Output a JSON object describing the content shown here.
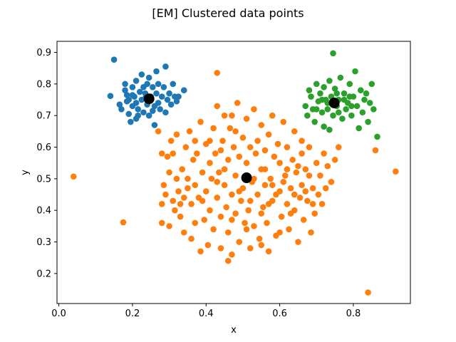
{
  "chart_data": {
    "type": "scatter",
    "title": "[EM] Clustered data points",
    "xlabel": "x",
    "ylabel": "y",
    "xlim": [
      -0.005,
      0.955
    ],
    "ylim": [
      0.105,
      0.935
    ],
    "xticks": [
      0.0,
      0.2,
      0.4,
      0.6,
      0.8
    ],
    "xtick_labels": [
      "0.0",
      "0.2",
      "0.4",
      "0.6",
      "0.8"
    ],
    "yticks": [
      0.2,
      0.3,
      0.4,
      0.5,
      0.6,
      0.7,
      0.8,
      0.9
    ],
    "ytick_labels": [
      "0.2",
      "0.3",
      "0.4",
      "0.5",
      "0.6",
      "0.7",
      "0.8",
      "0.9"
    ],
    "grid": false,
    "series": [
      {
        "color": "#1f77b4",
        "points": [
          [
            0.15,
            0.877
          ],
          [
            0.14,
            0.762
          ],
          [
            0.165,
            0.735
          ],
          [
            0.17,
            0.72
          ],
          [
            0.18,
            0.8
          ],
          [
            0.18,
            0.78
          ],
          [
            0.185,
            0.765
          ],
          [
            0.19,
            0.75
          ],
          [
            0.19,
            0.705
          ],
          [
            0.195,
            0.68
          ],
          [
            0.2,
            0.79
          ],
          [
            0.2,
            0.73
          ],
          [
            0.205,
            0.76
          ],
          [
            0.21,
            0.81
          ],
          [
            0.21,
            0.74
          ],
          [
            0.215,
            0.72
          ],
          [
            0.215,
            0.7
          ],
          [
            0.22,
            0.775
          ],
          [
            0.225,
            0.83
          ],
          [
            0.225,
            0.75
          ],
          [
            0.23,
            0.79
          ],
          [
            0.23,
            0.71
          ],
          [
            0.235,
            0.77
          ],
          [
            0.24,
            0.8
          ],
          [
            0.24,
            0.735
          ],
          [
            0.245,
            0.82
          ],
          [
            0.245,
            0.7
          ],
          [
            0.25,
            0.76
          ],
          [
            0.255,
            0.79
          ],
          [
            0.26,
            0.73
          ],
          [
            0.26,
            0.67
          ],
          [
            0.265,
            0.77
          ],
          [
            0.27,
            0.74
          ],
          [
            0.27,
            0.8
          ],
          [
            0.275,
            0.72
          ],
          [
            0.28,
            0.76
          ],
          [
            0.285,
            0.79
          ],
          [
            0.29,
            0.855
          ],
          [
            0.29,
            0.71
          ],
          [
            0.295,
            0.75
          ],
          [
            0.3,
            0.77
          ],
          [
            0.305,
            0.735
          ],
          [
            0.31,
            0.8
          ],
          [
            0.315,
            0.76
          ],
          [
            0.32,
            0.745
          ],
          [
            0.325,
            0.76
          ],
          [
            0.34,
            0.78
          ],
          [
            0.265,
            0.84
          ],
          [
            0.185,
            0.745
          ],
          [
            0.2,
            0.765
          ],
          [
            0.21,
            0.69
          ],
          [
            0.235,
            0.755
          ],
          [
            0.255,
            0.715
          ]
        ]
      },
      {
        "color": "#ff7f0e",
        "points": [
          [
            0.04,
            0.507
          ],
          [
            0.175,
            0.362
          ],
          [
            0.43,
            0.835
          ],
          [
            0.84,
            0.14
          ],
          [
            0.915,
            0.523
          ],
          [
            0.86,
            0.59
          ],
          [
            0.27,
            0.65
          ],
          [
            0.28,
            0.58
          ],
          [
            0.28,
            0.42
          ],
          [
            0.28,
            0.36
          ],
          [
            0.285,
            0.48
          ],
          [
            0.29,
            0.45
          ],
          [
            0.295,
            0.57
          ],
          [
            0.3,
            0.52
          ],
          [
            0.3,
            0.35
          ],
          [
            0.305,
            0.62
          ],
          [
            0.31,
            0.43
          ],
          [
            0.315,
            0.4
          ],
          [
            0.32,
            0.5
          ],
          [
            0.32,
            0.64
          ],
          [
            0.325,
            0.46
          ],
          [
            0.33,
            0.38
          ],
          [
            0.335,
            0.53
          ],
          [
            0.34,
            0.33
          ],
          [
            0.345,
            0.6
          ],
          [
            0.35,
            0.47
          ],
          [
            0.355,
            0.65
          ],
          [
            0.36,
            0.42
          ],
          [
            0.36,
            0.31
          ],
          [
            0.365,
            0.56
          ],
          [
            0.37,
            0.48
          ],
          [
            0.37,
            0.36
          ],
          [
            0.375,
            0.58
          ],
          [
            0.38,
            0.44
          ],
          [
            0.385,
            0.68
          ],
          [
            0.385,
            0.27
          ],
          [
            0.39,
            0.52
          ],
          [
            0.395,
            0.37
          ],
          [
            0.4,
            0.61
          ],
          [
            0.4,
            0.46
          ],
          [
            0.405,
            0.29
          ],
          [
            0.41,
            0.55
          ],
          [
            0.41,
            0.4
          ],
          [
            0.415,
            0.5
          ],
          [
            0.42,
            0.66
          ],
          [
            0.42,
            0.34
          ],
          [
            0.425,
            0.58
          ],
          [
            0.43,
            0.44
          ],
          [
            0.43,
            0.73
          ],
          [
            0.435,
            0.52
          ],
          [
            0.44,
            0.38
          ],
          [
            0.44,
            0.28
          ],
          [
            0.445,
            0.62
          ],
          [
            0.45,
            0.48
          ],
          [
            0.45,
            0.7
          ],
          [
            0.455,
            0.41
          ],
          [
            0.46,
            0.56
          ],
          [
            0.46,
            0.33
          ],
          [
            0.465,
            0.66
          ],
          [
            0.47,
            0.45
          ],
          [
            0.47,
            0.26
          ],
          [
            0.475,
            0.6
          ],
          [
            0.48,
            0.51
          ],
          [
            0.48,
            0.39
          ],
          [
            0.485,
            0.74
          ],
          [
            0.49,
            0.57
          ],
          [
            0.49,
            0.3
          ],
          [
            0.495,
            0.43
          ],
          [
            0.5,
            0.63
          ],
          [
            0.5,
            0.47
          ],
          [
            0.505,
            0.36
          ],
          [
            0.51,
            0.69
          ],
          [
            0.51,
            0.55
          ],
          [
            0.515,
            0.4
          ],
          [
            0.52,
            0.6
          ],
          [
            0.52,
            0.28
          ],
          [
            0.525,
            0.49
          ],
          [
            0.53,
            0.72
          ],
          [
            0.53,
            0.35
          ],
          [
            0.535,
            0.58
          ],
          [
            0.54,
            0.45
          ],
          [
            0.54,
            0.62
          ],
          [
            0.545,
            0.31
          ],
          [
            0.55,
            0.53
          ],
          [
            0.55,
            0.67
          ],
          [
            0.555,
            0.41
          ],
          [
            0.56,
            0.59
          ],
          [
            0.56,
            0.48
          ],
          [
            0.565,
            0.36
          ],
          [
            0.57,
            0.64
          ],
          [
            0.57,
            0.27
          ],
          [
            0.575,
            0.5
          ],
          [
            0.58,
            0.7
          ],
          [
            0.58,
            0.43
          ],
          [
            0.585,
            0.57
          ],
          [
            0.59,
            0.32
          ],
          [
            0.595,
            0.61
          ],
          [
            0.6,
            0.46
          ],
          [
            0.6,
            0.55
          ],
          [
            0.605,
            0.38
          ],
          [
            0.61,
            0.68
          ],
          [
            0.615,
            0.51
          ],
          [
            0.62,
            0.42
          ],
          [
            0.62,
            0.6
          ],
          [
            0.625,
            0.34
          ],
          [
            0.63,
            0.47
          ],
          [
            0.635,
            0.56
          ],
          [
            0.64,
            0.65
          ],
          [
            0.64,
            0.4
          ],
          [
            0.645,
            0.52
          ],
          [
            0.65,
            0.3
          ],
          [
            0.655,
            0.44
          ],
          [
            0.66,
            0.58
          ],
          [
            0.66,
            0.48
          ],
          [
            0.665,
            0.37
          ],
          [
            0.67,
            0.53
          ],
          [
            0.675,
            0.43
          ],
          [
            0.68,
            0.6
          ],
          [
            0.685,
            0.33
          ],
          [
            0.69,
            0.47
          ],
          [
            0.695,
            0.39
          ],
          [
            0.7,
            0.55
          ],
          [
            0.705,
            0.45
          ],
          [
            0.71,
            0.51
          ],
          [
            0.715,
            0.42
          ],
          [
            0.72,
            0.58
          ],
          [
            0.725,
            0.47
          ],
          [
            0.73,
            0.54
          ],
          [
            0.74,
            0.49
          ],
          [
            0.75,
            0.56
          ],
          [
            0.76,
            0.6
          ],
          [
            0.46,
            0.24
          ],
          [
            0.34,
            0.44
          ],
          [
            0.37,
            0.62
          ],
          [
            0.43,
            0.49
          ],
          [
            0.47,
            0.37
          ],
          [
            0.52,
            0.43
          ],
          [
            0.56,
            0.53
          ],
          [
            0.59,
            0.45
          ],
          [
            0.63,
            0.39
          ],
          [
            0.67,
            0.46
          ],
          [
            0.44,
            0.59
          ],
          [
            0.48,
            0.65
          ],
          [
            0.53,
            0.5
          ],
          [
            0.57,
            0.42
          ],
          [
            0.61,
            0.49
          ],
          [
            0.65,
            0.54
          ],
          [
            0.69,
            0.42
          ],
          [
            0.39,
            0.43
          ],
          [
            0.41,
            0.62
          ],
          [
            0.45,
            0.53
          ],
          [
            0.49,
            0.46
          ],
          [
            0.51,
            0.34
          ],
          [
            0.55,
            0.39
          ],
          [
            0.58,
            0.48
          ],
          [
            0.62,
            0.53
          ],
          [
            0.66,
            0.62
          ],
          [
            0.35,
            0.5
          ],
          [
            0.33,
            0.42
          ],
          [
            0.31,
            0.58
          ],
          [
            0.47,
            0.7
          ],
          [
            0.55,
            0.29
          ],
          [
            0.6,
            0.33
          ],
          [
            0.64,
            0.45
          ],
          [
            0.68,
            0.51
          ]
        ]
      },
      {
        "color": "#2ca02c",
        "points": [
          [
            0.745,
            0.897
          ],
          [
            0.865,
            0.633
          ],
          [
            0.67,
            0.73
          ],
          [
            0.675,
            0.7
          ],
          [
            0.68,
            0.78
          ],
          [
            0.685,
            0.76
          ],
          [
            0.69,
            0.72
          ],
          [
            0.695,
            0.68
          ],
          [
            0.7,
            0.8
          ],
          [
            0.705,
            0.745
          ],
          [
            0.71,
            0.77
          ],
          [
            0.715,
            0.71
          ],
          [
            0.72,
            0.79
          ],
          [
            0.72,
            0.665
          ],
          [
            0.725,
            0.75
          ],
          [
            0.73,
            0.72
          ],
          [
            0.735,
            0.81
          ],
          [
            0.74,
            0.76
          ],
          [
            0.745,
            0.7
          ],
          [
            0.75,
            0.785
          ],
          [
            0.755,
            0.73
          ],
          [
            0.76,
            0.75
          ],
          [
            0.765,
            0.82
          ],
          [
            0.77,
            0.69
          ],
          [
            0.775,
            0.77
          ],
          [
            0.78,
            0.72
          ],
          [
            0.785,
            0.74
          ],
          [
            0.79,
            0.8
          ],
          [
            0.795,
            0.7
          ],
          [
            0.8,
            0.76
          ],
          [
            0.805,
            0.84
          ],
          [
            0.81,
            0.73
          ],
          [
            0.815,
            0.66
          ],
          [
            0.82,
            0.78
          ],
          [
            0.825,
            0.71
          ],
          [
            0.83,
            0.75
          ],
          [
            0.835,
            0.77
          ],
          [
            0.84,
            0.68
          ],
          [
            0.845,
            0.74
          ],
          [
            0.85,
            0.8
          ],
          [
            0.855,
            0.72
          ],
          [
            0.735,
            0.655
          ],
          [
            0.715,
            0.75
          ],
          [
            0.755,
            0.77
          ],
          [
            0.775,
            0.75
          ],
          [
            0.795,
            0.73
          ],
          [
            0.7,
            0.72
          ],
          [
            0.73,
            0.74
          ],
          [
            0.76,
            0.71
          ],
          [
            0.79,
            0.76
          ]
        ]
      },
      {
        "color": "#000000",
        "role": "centers",
        "points": [
          [
            0.245,
            0.753
          ],
          [
            0.51,
            0.503
          ],
          [
            0.748,
            0.74
          ]
        ]
      }
    ]
  }
}
